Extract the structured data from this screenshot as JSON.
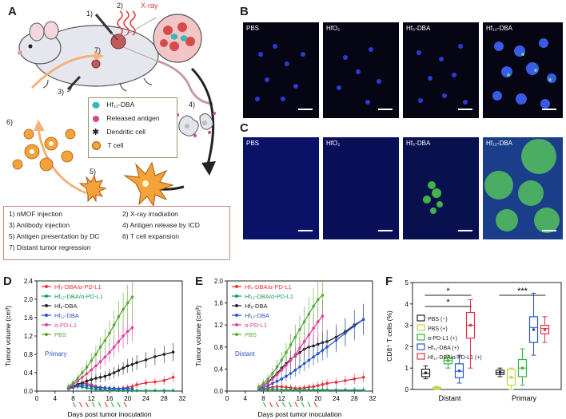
{
  "panels": {
    "a": "A",
    "b": "B",
    "c": "C",
    "d": "D",
    "e": "E",
    "f": "F"
  },
  "schematic": {
    "step1": "1)",
    "step2": "2)",
    "xray": "X-ray",
    "step3": "3)",
    "step4": "4)",
    "step5": "5)",
    "step6": "6)",
    "step7": "7)",
    "legend": [
      {
        "label": "Hf₁₂-DBA",
        "icon": "hexagon-icon"
      },
      {
        "label": "Released antigen",
        "icon": "antigen-icon"
      },
      {
        "label": "Dendritic cell",
        "icon": "dendritic-cell-icon"
      },
      {
        "label": "T cell",
        "icon": "t-cell-icon"
      }
    ],
    "steps": [
      "1) nMOF injection",
      "2) X-ray irradiation",
      "3) Antibody injection",
      "4) Antigen release by ICD",
      "5) Antigen presentation by DC",
      "6) T cell expansion",
      "7) Distant tumor regression"
    ]
  },
  "micro_b": [
    "PBS",
    "HfO₂",
    "Hf₆-DBA",
    "Hf₁₂-DBA"
  ],
  "micro_c": [
    "PBS",
    "HfO₂",
    "Hf₆-DBA",
    "Hf₁₂-DBA"
  ],
  "chart_data": [
    {
      "type": "line",
      "panel": "D",
      "xlabel": "Days post tumor inoculation",
      "ylabel": "Tumor volume (cm³)",
      "annotation": "Primary",
      "xlim": [
        0,
        32
      ],
      "ylim": [
        0,
        2.4
      ],
      "xticks": [
        0,
        4,
        8,
        12,
        16,
        20,
        24,
        28,
        32
      ],
      "yticks": [
        0.0,
        0.4,
        0.8,
        1.2,
        1.6,
        2.0,
        2.4
      ],
      "series": [
        {
          "name": "Hf₆-DBA/α-PD-L1",
          "color": "#e8323c",
          "x": [
            7,
            8,
            9,
            10,
            11,
            12,
            13,
            14,
            15,
            16,
            17,
            18,
            19,
            20,
            21,
            22,
            24,
            26,
            28,
            30
          ],
          "y": [
            0.06,
            0.1,
            0.14,
            0.17,
            0.16,
            0.14,
            0.1,
            0.08,
            0.07,
            0.06,
            0.05,
            0.05,
            0.06,
            0.08,
            0.1,
            0.14,
            0.18,
            0.2,
            0.23,
            0.3
          ]
        },
        {
          "name": "Hf₁₂-DBA/α-PD-L1",
          "color": "#1a9a5a",
          "x": [
            7,
            8,
            9,
            10,
            11,
            12,
            13,
            14,
            15,
            16,
            17,
            18,
            19,
            20,
            21,
            22,
            24,
            26,
            28,
            30
          ],
          "y": [
            0.05,
            0.08,
            0.1,
            0.09,
            0.07,
            0.05,
            0.04,
            0.03,
            0.02,
            0.02,
            0.02,
            0.01,
            0.01,
            0.01,
            0.01,
            0.01,
            0.01,
            0.01,
            0.01,
            0.01
          ]
        },
        {
          "name": "Hf₆-DBA",
          "color": "#222222",
          "x": [
            7,
            8,
            9,
            10,
            11,
            12,
            13,
            14,
            15,
            16,
            17,
            18,
            19,
            20,
            21,
            22,
            24,
            26,
            28,
            30
          ],
          "y": [
            0.06,
            0.1,
            0.15,
            0.18,
            0.22,
            0.25,
            0.28,
            0.3,
            0.32,
            0.36,
            0.4,
            0.45,
            0.5,
            0.55,
            0.58,
            0.62,
            0.68,
            0.75,
            0.8,
            0.85
          ]
        },
        {
          "name": "Hf₁₂-DBA",
          "color": "#2a55c8",
          "x": [
            7,
            8,
            9,
            10,
            11,
            12,
            13,
            14,
            15,
            16,
            17,
            18,
            19,
            20,
            21
          ],
          "y": [
            0.05,
            0.08,
            0.11,
            0.13,
            0.12,
            0.1,
            0.08,
            0.07,
            0.07,
            0.06,
            0.06,
            0.05,
            0.05,
            0.05,
            0.05
          ]
        },
        {
          "name": "α-PD-L1",
          "color": "#e0409a",
          "x": [
            7,
            8,
            9,
            10,
            11,
            12,
            13,
            14,
            15,
            16,
            17,
            18,
            19,
            20,
            21
          ],
          "y": [
            0.08,
            0.14,
            0.22,
            0.3,
            0.38,
            0.46,
            0.55,
            0.64,
            0.74,
            0.84,
            0.96,
            1.08,
            1.2,
            1.3,
            1.38
          ]
        },
        {
          "name": "PBS",
          "color": "#5aa83a",
          "x": [
            7,
            8,
            9,
            10,
            11,
            12,
            13,
            14,
            15,
            16,
            17,
            18,
            19,
            20,
            21
          ],
          "y": [
            0.1,
            0.18,
            0.28,
            0.4,
            0.52,
            0.66,
            0.8,
            0.96,
            1.1,
            1.26,
            1.44,
            1.62,
            1.78,
            1.92,
            2.05
          ]
        }
      ]
    },
    {
      "type": "line",
      "panel": "E",
      "xlabel": "Days post tumor inoculation",
      "ylabel": "Tumor volume (cm³)",
      "annotation": "Distant",
      "xlim": [
        0,
        32
      ],
      "ylim": [
        0,
        2.0
      ],
      "xticks": [
        0,
        4,
        8,
        12,
        16,
        20,
        24,
        28,
        32
      ],
      "yticks": [
        0.0,
        0.4,
        0.8,
        1.2,
        1.6,
        2.0
      ],
      "series": [
        {
          "name": "Hf₆-DBA/α-PD-L1",
          "color": "#e8323c",
          "x": [
            7,
            8,
            9,
            10,
            11,
            12,
            13,
            14,
            15,
            16,
            17,
            18,
            19,
            20,
            21,
            22,
            24,
            26,
            28,
            30
          ],
          "y": [
            0.02,
            0.04,
            0.06,
            0.07,
            0.08,
            0.08,
            0.07,
            0.06,
            0.05,
            0.05,
            0.06,
            0.07,
            0.08,
            0.1,
            0.12,
            0.14,
            0.16,
            0.19,
            0.22,
            0.25
          ]
        },
        {
          "name": "Hf₁₂-DBA/α-PD-L1",
          "color": "#1a9a5a",
          "x": [
            7,
            8,
            9,
            10,
            11,
            12,
            13,
            14,
            15,
            16,
            17,
            18,
            19,
            20,
            21,
            22,
            24,
            26,
            28,
            30
          ],
          "y": [
            0.02,
            0.02,
            0.03,
            0.03,
            0.03,
            0.02,
            0.02,
            0.02,
            0.02,
            0.02,
            0.02,
            0.02,
            0.02,
            0.02,
            0.02,
            0.02,
            0.02,
            0.02,
            0.02,
            0.02
          ]
        },
        {
          "name": "Hf₆-DBA",
          "color": "#222222",
          "x": [
            7,
            8,
            9,
            10,
            11,
            12,
            13,
            14,
            15,
            16,
            17,
            18,
            19,
            20,
            21,
            22,
            24,
            26,
            28,
            30
          ],
          "y": [
            0.05,
            0.1,
            0.16,
            0.24,
            0.32,
            0.42,
            0.5,
            0.58,
            0.64,
            0.7,
            0.76,
            0.8,
            0.82,
            0.85,
            0.88,
            0.9,
            0.98,
            1.08,
            1.2,
            1.3
          ]
        },
        {
          "name": "Hf₁₂-DBA",
          "color": "#2a55c8",
          "x": [
            7,
            8,
            9,
            10,
            11,
            12,
            13,
            14,
            15,
            16,
            17,
            18,
            19,
            20,
            21,
            22,
            24,
            26,
            28,
            30
          ],
          "y": [
            0.04,
            0.07,
            0.1,
            0.14,
            0.18,
            0.22,
            0.27,
            0.32,
            0.38,
            0.44,
            0.5,
            0.56,
            0.62,
            0.68,
            0.74,
            0.8,
            0.92,
            1.05,
            1.18,
            1.3
          ]
        },
        {
          "name": "α-PD-L1",
          "color": "#e0409a",
          "x": [
            7,
            8,
            9,
            10,
            11,
            12,
            13,
            14,
            15,
            16,
            17,
            18,
            19,
            20,
            21
          ],
          "y": [
            0.06,
            0.1,
            0.15,
            0.22,
            0.3,
            0.38,
            0.47,
            0.56,
            0.66,
            0.78,
            0.9,
            1.02,
            1.14,
            1.26,
            1.36
          ]
        },
        {
          "name": "PBS",
          "color": "#5aa83a",
          "x": [
            7,
            8,
            9,
            10,
            11,
            12,
            13,
            14,
            15,
            16,
            17,
            18,
            19,
            20,
            21
          ],
          "y": [
            0.08,
            0.14,
            0.22,
            0.32,
            0.44,
            0.56,
            0.7,
            0.84,
            0.98,
            1.12,
            1.26,
            1.4,
            1.54,
            1.66,
            1.74
          ]
        }
      ]
    },
    {
      "type": "box",
      "panel": "F",
      "ylabel": "CD8⁺ T cells (%)",
      "ylim": [
        0,
        5
      ],
      "yticks": [
        0,
        1,
        2,
        3,
        4,
        5
      ],
      "categories": [
        "Distant",
        "Primary"
      ],
      "significance": [
        {
          "category": "Distant",
          "labels": [
            "*",
            "*"
          ]
        },
        {
          "category": "Primary",
          "labels": [
            "***"
          ]
        }
      ],
      "series": [
        {
          "name": "PBS (−)",
          "color": "#222222",
          "boxes": [
            {
              "q1": 0.6,
              "median": 0.75,
              "q3": 0.95,
              "min": 0.5,
              "max": 1.1
            },
            {
              "q1": 0.7,
              "median": 0.8,
              "q3": 0.9,
              "min": 0.6,
              "max": 1.0
            }
          ]
        },
        {
          "name": "PBS (+)",
          "color": "#c8d04a",
          "boxes": [
            {
              "q1": 0.02,
              "median": 0.05,
              "q3": 0.1,
              "min": 0.0,
              "max": 0.15
            },
            {
              "q1": 0.2,
              "median": 0.55,
              "q3": 0.95,
              "min": 0.0,
              "max": 1.0
            }
          ]
        },
        {
          "name": "α-PD-L1 (+)",
          "color": "#2cb83a",
          "boxes": [
            {
              "q1": 1.2,
              "median": 1.35,
              "q3": 1.5,
              "min": 1.0,
              "max": 1.6
            },
            {
              "q1": 0.6,
              "median": 1.0,
              "q3": 1.4,
              "min": 0.2,
              "max": 1.9
            }
          ]
        },
        {
          "name": "Hf₁₂-DBA (+)",
          "color": "#2a55c8",
          "boxes": [
            {
              "q1": 0.55,
              "median": 0.85,
              "q3": 1.2,
              "min": 0.3,
              "max": 1.6
            },
            {
              "q1": 2.2,
              "median": 2.9,
              "q3": 3.4,
              "min": 1.6,
              "max": 4.5
            }
          ]
        },
        {
          "name": "Hf₁₂-DBA/α-PD-L1 (+)",
          "color": "#e0324a",
          "boxes": [
            {
              "q1": 2.4,
              "median": 3.0,
              "q3": 3.6,
              "min": 1.0,
              "max": 4.2
            },
            {
              "q1": 2.6,
              "median": 2.85,
              "q3": 3.0,
              "min": 2.2,
              "max": 3.4
            }
          ]
        }
      ]
    }
  ]
}
